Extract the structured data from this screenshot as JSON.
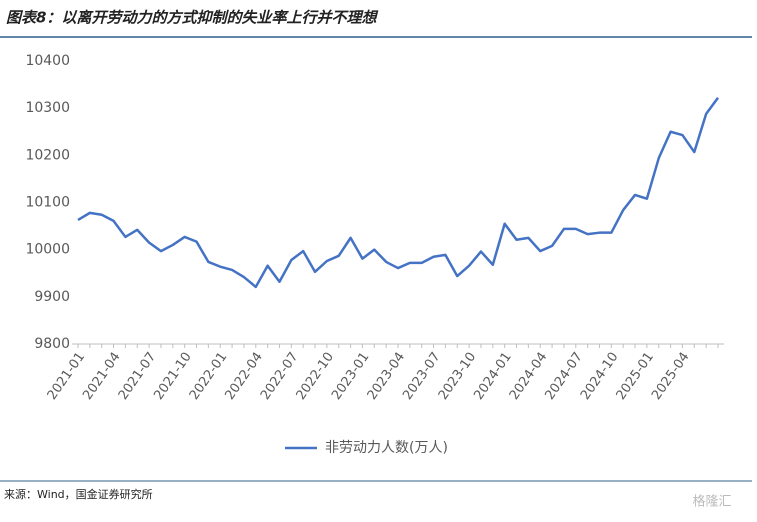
{
  "chart_data": {
    "type": "line",
    "title": "图表8：以离开劳动力的方式抑制的失业率上行并不理想",
    "source": "来源：Wind，国金证券研究所",
    "watermark": "格隆汇",
    "categories": [
      "2021-01",
      null,
      null,
      "2021-04",
      null,
      null,
      "2021-07",
      null,
      null,
      "2021-10",
      null,
      null,
      "2022-01",
      null,
      null,
      "2022-04",
      null,
      null,
      "2022-07",
      null,
      null,
      "2022-10",
      null,
      null,
      "2023-01",
      null,
      null,
      "2023-04",
      null,
      null,
      "2023-07",
      null,
      null,
      "2023-10",
      null,
      null,
      "2024-01",
      null,
      null,
      "2024-04",
      null,
      null,
      "2024-07",
      null,
      null,
      "2024-10",
      null,
      null,
      "2025-01",
      null,
      null,
      "2025-04",
      null,
      null,
      null
    ],
    "series": [
      {
        "name": "非劳动力人数(万人)",
        "color": "#4472c4",
        "values": [
          10063,
          10078,
          10074,
          10061,
          10027,
          10042,
          10015,
          9997,
          10010,
          10027,
          10017,
          9974,
          9964,
          9957,
          9942,
          9921,
          9966,
          9932,
          9978,
          9997,
          9953,
          9976,
          9987,
          10025,
          9981,
          10000,
          9974,
          9961,
          9972,
          9972,
          9985,
          9989,
          9944,
          9966,
          9996,
          9968,
          10055,
          10021,
          10025,
          9997,
          10008,
          10044,
          10044,
          10033,
          10036,
          10036,
          10084,
          10116,
          10108,
          10194,
          10250,
          10243,
          10207,
          10288,
          10322
        ]
      }
    ],
    "ylim": [
      9800,
      10400
    ],
    "yticks": [
      9800,
      9900,
      10000,
      10100,
      10200,
      10300,
      10400
    ],
    "legend": "bottom",
    "grid": false
  }
}
